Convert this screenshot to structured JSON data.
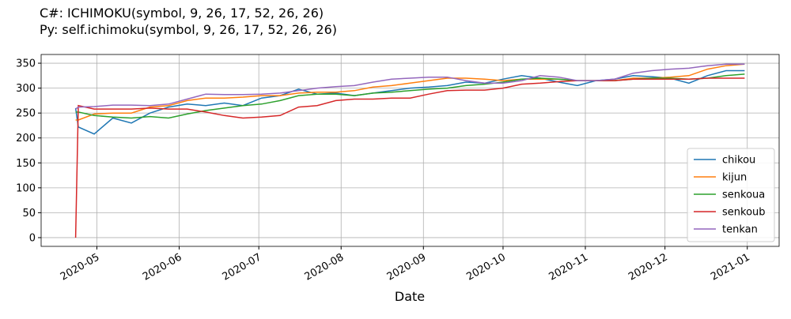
{
  "chart_data": {
    "type": "line",
    "title_lines": [
      "C#: ICHIMOKU(symbol, 9, 26, 17, 52, 26, 26)",
      "Py:  self.ichimoku(symbol, 9, 26, 17, 52, 26, 26)"
    ],
    "x_label": "Date",
    "x": [
      "2020-04-23",
      "2020-04-24",
      "2020-04-30",
      "2020-05-07",
      "2020-05-14",
      "2020-05-21",
      "2020-05-28",
      "2020-06-04",
      "2020-06-11",
      "2020-06-18",
      "2020-06-25",
      "2020-07-02",
      "2020-07-09",
      "2020-07-16",
      "2020-07-23",
      "2020-07-30",
      "2020-08-06",
      "2020-08-13",
      "2020-08-20",
      "2020-08-27",
      "2020-09-03",
      "2020-09-10",
      "2020-09-17",
      "2020-09-24",
      "2020-10-01",
      "2020-10-08",
      "2020-10-15",
      "2020-10-22",
      "2020-10-29",
      "2020-11-05",
      "2020-11-12",
      "2020-11-19",
      "2020-11-26",
      "2020-12-03",
      "2020-12-10",
      "2020-12-17",
      "2020-12-24",
      "2020-12-31"
    ],
    "series": [
      {
        "name": "chikou",
        "color": "#1f77b4",
        "values": [
          260,
          222,
          208,
          240,
          230,
          250,
          262,
          268,
          265,
          270,
          265,
          280,
          285,
          298,
          288,
          290,
          285,
          290,
          295,
          300,
          302,
          305,
          312,
          310,
          318,
          325,
          320,
          312,
          305,
          315,
          318,
          325,
          323,
          320,
          310,
          325,
          335,
          335
        ]
      },
      {
        "name": "kijun",
        "color": "#ff7f0e",
        "values": [
          236,
          236,
          248,
          250,
          250,
          262,
          265,
          275,
          280,
          280,
          282,
          285,
          285,
          290,
          292,
          292,
          295,
          302,
          305,
          310,
          315,
          320,
          320,
          318,
          315,
          318,
          318,
          318,
          315,
          315,
          315,
          320,
          320,
          322,
          325,
          338,
          345,
          348
        ]
      },
      {
        "name": "senkoua",
        "color": "#2ca02c",
        "values": [
          252,
          252,
          245,
          242,
          240,
          243,
          240,
          248,
          255,
          260,
          265,
          268,
          275,
          285,
          288,
          288,
          285,
          290,
          292,
          295,
          298,
          300,
          305,
          308,
          312,
          318,
          320,
          318,
          315,
          315,
          315,
          318,
          320,
          320,
          318,
          320,
          325,
          328
        ]
      },
      {
        "name": "senkoub",
        "color": "#d62728",
        "values": [
          0,
          265,
          258,
          258,
          258,
          260,
          258,
          258,
          252,
          245,
          240,
          242,
          245,
          262,
          265,
          275,
          278,
          278,
          280,
          280,
          288,
          295,
          296,
          296,
          300,
          308,
          310,
          313,
          315,
          315,
          315,
          318,
          318,
          318,
          318,
          320,
          320,
          320
        ]
      },
      {
        "name": "tenkan",
        "color": "#9467bd",
        "values": [
          258,
          262,
          263,
          266,
          266,
          265,
          268,
          278,
          288,
          287,
          287,
          288,
          290,
          295,
          300,
          303,
          305,
          312,
          318,
          320,
          322,
          322,
          315,
          310,
          310,
          315,
          325,
          322,
          315,
          315,
          318,
          330,
          335,
          338,
          340,
          345,
          348,
          348
        ]
      }
    ],
    "xlim": [
      "2020-04-10",
      "2021-01-13"
    ],
    "xticks": [
      {
        "value": "2020-05-01",
        "label": "2020-05"
      },
      {
        "value": "2020-06-01",
        "label": "2020-06"
      },
      {
        "value": "2020-07-01",
        "label": "2020-07"
      },
      {
        "value": "2020-08-01",
        "label": "2020-08"
      },
      {
        "value": "2020-09-01",
        "label": "2020-09"
      },
      {
        "value": "2020-10-01",
        "label": "2020-10"
      },
      {
        "value": "2020-11-01",
        "label": "2020-11"
      },
      {
        "value": "2020-12-01",
        "label": "2020-12"
      },
      {
        "value": "2021-01-01",
        "label": "2021-01"
      }
    ],
    "ylim": [
      -17.5,
      367.5
    ],
    "yticks": [
      0,
      50,
      100,
      150,
      200,
      250,
      300,
      350
    ],
    "grid": true,
    "legend": "lower right"
  }
}
